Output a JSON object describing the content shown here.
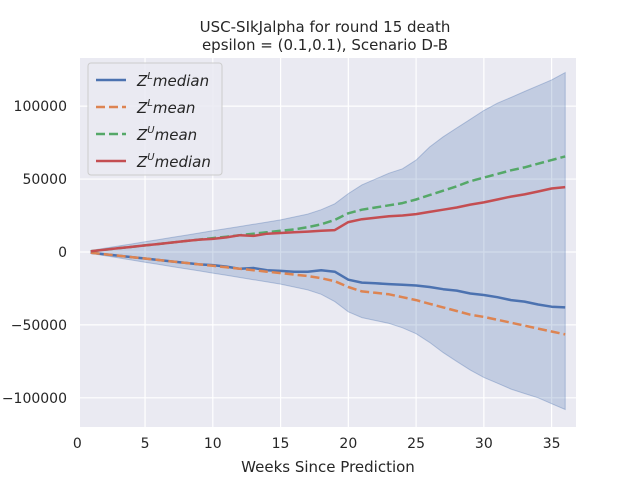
{
  "chart_data": {
    "type": "line",
    "title": "USC-SIkJalpha for round 15 death",
    "subtitle": "epsilon = (0.1,0.1), Scenario D-B",
    "xlabel": "Weeks Since Prediction",
    "ylabel": "",
    "xlim": [
      0.2,
      36.8
    ],
    "ylim": [
      -120000,
      133000
    ],
    "xticks": [
      0,
      5,
      10,
      15,
      20,
      25,
      30,
      35
    ],
    "yticks": [
      -100000,
      -50000,
      0,
      50000,
      100000
    ],
    "grid": true,
    "legend_position": "top-left",
    "x": [
      1,
      2,
      3,
      4,
      5,
      6,
      7,
      8,
      9,
      10,
      11,
      12,
      13,
      14,
      15,
      16,
      17,
      18,
      19,
      20,
      21,
      22,
      23,
      24,
      25,
      26,
      27,
      28,
      29,
      30,
      31,
      32,
      33,
      34,
      35,
      36
    ],
    "band": {
      "color": "#4c72b0",
      "upper": [
        1000,
        2500,
        4000,
        5500,
        7000,
        8500,
        10000,
        11500,
        13000,
        14500,
        16000,
        17500,
        19000,
        20500,
        22000,
        24000,
        26000,
        29000,
        33000,
        40000,
        46000,
        50000,
        54000,
        57000,
        63000,
        72000,
        79000,
        85000,
        91000,
        97000,
        102000,
        106000,
        110000,
        114000,
        118000,
        123000
      ],
      "lower": [
        -1000,
        -2500,
        -4000,
        -5500,
        -7000,
        -8500,
        -10000,
        -11500,
        -13000,
        -14500,
        -16000,
        -17500,
        -19000,
        -20500,
        -22000,
        -24000,
        -26000,
        -29000,
        -34000,
        -41000,
        -45000,
        -47000,
        -49000,
        -52000,
        -56000,
        -62000,
        -69000,
        -75000,
        -81000,
        -86000,
        -90000,
        -94000,
        -97000,
        -100000,
        -104000,
        -108000
      ]
    },
    "series": [
      {
        "name": "Z^L median",
        "color": "#4c72b0",
        "style": "solid",
        "values": [
          -500,
          -1500,
          -2500,
          -3500,
          -4500,
          -5500,
          -6500,
          -7500,
          -8500,
          -9000,
          -10000,
          -11500,
          -11000,
          -12500,
          -13000,
          -13500,
          -13500,
          -12500,
          -13500,
          -19000,
          -21000,
          -21500,
          -22000,
          -22500,
          -23000,
          -24000,
          -25500,
          -26500,
          -28500,
          -29500,
          -31000,
          -33000,
          -34000,
          -36000,
          -37500,
          -38000
        ]
      },
      {
        "name": "Z^L mean",
        "color": "#dd8452",
        "style": "dashed",
        "values": [
          -500,
          -1500,
          -2500,
          -3500,
          -4500,
          -5500,
          -6500,
          -7500,
          -8500,
          -9500,
          -10500,
          -11500,
          -12500,
          -13500,
          -14500,
          -15500,
          -16500,
          -18000,
          -20000,
          -24000,
          -27000,
          -28000,
          -29000,
          -31000,
          -33000,
          -35500,
          -38000,
          -40500,
          -43000,
          -44500,
          -46500,
          -48500,
          -50500,
          -52500,
          -54500,
          -56500
        ]
      },
      {
        "name": "Z^U mean",
        "color": "#55a868",
        "style": "dashed",
        "values": [
          500,
          1500,
          2500,
          3500,
          4500,
          5500,
          6500,
          7500,
          8500,
          9500,
          10500,
          11500,
          12500,
          13500,
          14500,
          15500,
          17000,
          19000,
          22000,
          26500,
          29000,
          30500,
          32000,
          33500,
          36000,
          39000,
          42000,
          45000,
          48500,
          51000,
          53500,
          56000,
          58000,
          60500,
          63000,
          65500
        ]
      },
      {
        "name": "Z^U median",
        "color": "#c44e52",
        "style": "solid",
        "values": [
          500,
          1500,
          2500,
          3500,
          4500,
          5500,
          6500,
          7500,
          8500,
          9000,
          10000,
          11500,
          11000,
          12500,
          13000,
          13500,
          14000,
          14500,
          15000,
          20500,
          22500,
          23500,
          24500,
          25000,
          26000,
          27500,
          29000,
          30500,
          32500,
          34000,
          36000,
          38000,
          39500,
          41500,
          43500,
          44500
        ]
      }
    ]
  },
  "legend_items": [
    {
      "base": "Z",
      "sup": "L",
      "word": "median"
    },
    {
      "base": "Z",
      "sup": "L",
      "word": "mean"
    },
    {
      "base": "Z",
      "sup": "U",
      "word": "mean"
    },
    {
      "base": "Z",
      "sup": "U",
      "word": "median"
    }
  ]
}
